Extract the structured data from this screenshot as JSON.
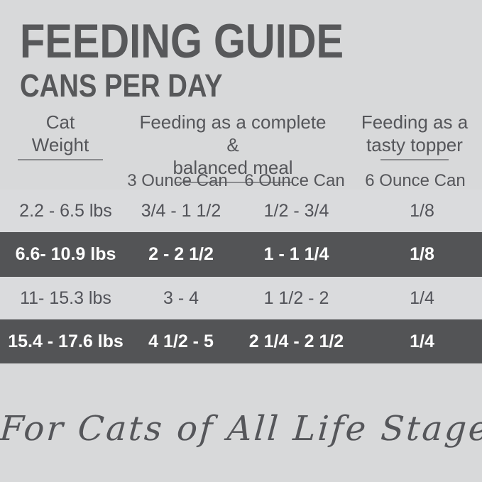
{
  "page": {
    "title": "FEEDING GUIDE",
    "subtitle": "CANS PER DAY",
    "tagline": "For Cats of All Life Stages"
  },
  "table": {
    "column_groups": [
      {
        "line1": "Cat",
        "line2": "Weight"
      },
      {
        "line1": "Feeding as a complete &",
        "line2": "balanced meal"
      },
      {
        "line1": "Feeding as a",
        "line2": "tasty topper"
      }
    ],
    "subheaders": [
      "3 Ounce Can",
      "6 Ounce Can",
      "6 Ounce Can"
    ],
    "rows": [
      {
        "weight": "2.2 - 6.5 lbs",
        "complete_3oz": "3/4 - 1 1/2",
        "complete_6oz": "1/2 - 3/4",
        "topper_6oz": "1/8",
        "highlighted": false
      },
      {
        "weight": "6.6- 10.9 lbs",
        "complete_3oz": "2 - 2 1/2",
        "complete_6oz": "1 - 1 1/4",
        "topper_6oz": "1/8",
        "highlighted": true
      },
      {
        "weight": "11- 15.3 lbs",
        "complete_3oz": "3 - 4",
        "complete_6oz": "1 1/2 - 2",
        "topper_6oz": "1/4",
        "highlighted": false
      },
      {
        "weight": "15.4 - 17.6 lbs",
        "complete_3oz": "4 1/2 - 5",
        "complete_6oz": "2 1/4 - 2 1/2",
        "topper_6oz": "1/4",
        "highlighted": true
      }
    ]
  },
  "colors": {
    "background": "#d8d9da",
    "light_row": "#dadbdd",
    "dark_row": "#535456",
    "text_dark": "#57585a",
    "text_on_dark": "#ffffff",
    "underline": "#8a8b8e"
  }
}
